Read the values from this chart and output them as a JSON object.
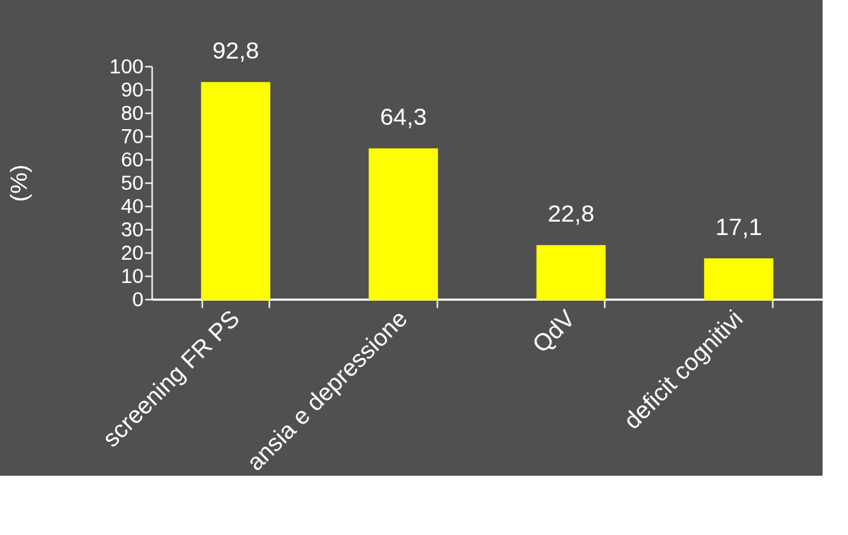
{
  "chart_data": {
    "type": "bar",
    "ylabel": "(%)",
    "categories": [
      "screening FR PS",
      "ansia e depressione",
      "QdV",
      "deficit cognitivi"
    ],
    "values": [
      92.8,
      64.3,
      22.8,
      17.1
    ],
    "value_labels": [
      "92,8",
      "64,3",
      "22,8",
      "17,1"
    ],
    "color": "#ffff00",
    "ylim": [
      0,
      100
    ],
    "yticks": [
      0,
      10,
      20,
      30,
      40,
      50,
      60,
      70,
      80,
      90,
      100
    ],
    "grid": false
  }
}
